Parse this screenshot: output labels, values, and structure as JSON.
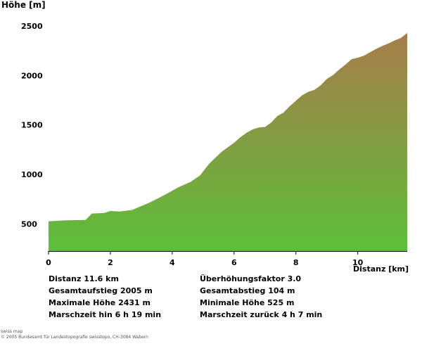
{
  "chart_data": {
    "type": "area",
    "ylabel": "Höhe [m]",
    "xlabel": "Distanz [km]",
    "xlim": [
      0,
      11.6
    ],
    "ylim": [
      225,
      2550
    ],
    "x_ticks": [
      0,
      2,
      4,
      6,
      8,
      10
    ],
    "y_ticks": [
      500,
      1000,
      1500,
      2000,
      2500
    ],
    "grid": false,
    "gradient_colors": {
      "low": "#5cbf3a",
      "high": "#a87d4a"
    },
    "series": [
      {
        "x": [
          0,
          0.5,
          1.2,
          1.4,
          1.8,
          2.0,
          2.3,
          2.7,
          3.3,
          3.8,
          4.2,
          4.6,
          4.9,
          5.2,
          5.6,
          6.0,
          6.2,
          6.4,
          6.6,
          6.8,
          7.0,
          7.2,
          7.4,
          7.6,
          7.8,
          8.0,
          8.2,
          8.4,
          8.6,
          8.8,
          9.0,
          9.2,
          9.4,
          9.6,
          9.8,
          10.0,
          10.2,
          10.4,
          10.6,
          10.8,
          11.0,
          11.2,
          11.4,
          11.6
        ],
        "y": [
          525,
          535,
          540,
          605,
          610,
          630,
          625,
          640,
          720,
          800,
          870,
          925,
          990,
          1110,
          1230,
          1320,
          1375,
          1420,
          1455,
          1475,
          1480,
          1525,
          1590,
          1625,
          1690,
          1745,
          1800,
          1835,
          1855,
          1900,
          1965,
          2005,
          2060,
          2110,
          2165,
          2180,
          2200,
          2235,
          2270,
          2300,
          2325,
          2355,
          2380,
          2431
        ]
      }
    ]
  },
  "stats": {
    "distanz": "Distanz 11.6 km",
    "gesamtaufstieg": "Gesamtaufstieg  2005 m",
    "maximale_hoehe": "Maximale Höhe  2431 m",
    "marschzeit_hin": "Marschzeit hin  6 h 19 min",
    "ueberhoehungsfaktor": "Überhöhungsfaktor 3.0",
    "gesamtabstieg": "Gesamtabstieg  104 m",
    "minimale_hoehe": "Minimale Höhe  525 m",
    "marschzeit_zurueck": "Marschzeit zurück  4 h 7 min"
  },
  "footer": {
    "line1": "swiss map",
    "line2": "© 2005 Bundesamt für Landestopografie swisstopo, CH-3084 Wabern"
  }
}
